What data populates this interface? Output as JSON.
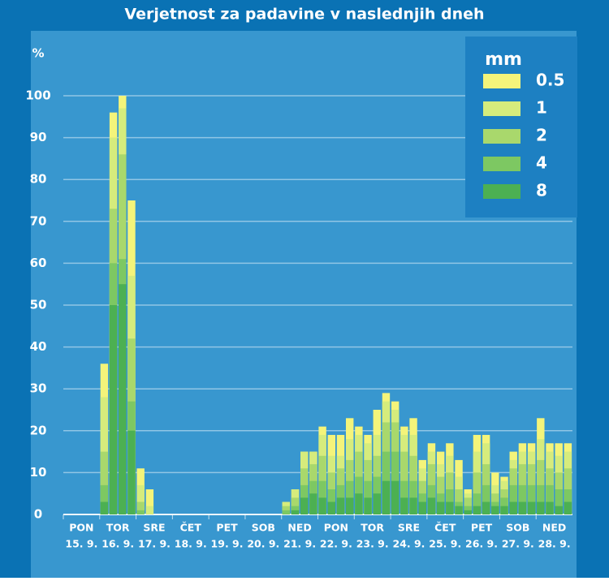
{
  "chart_data": {
    "type": "bar",
    "overlay": true,
    "title": "Verjetnost za padavine v naslednjih dneh",
    "y_unit": "%",
    "legend_title": "mm",
    "legend_position": "upper right",
    "grid": true,
    "ylim": [
      0,
      100
    ],
    "yticks": [
      0,
      10,
      20,
      30,
      40,
      50,
      60,
      70,
      80,
      90,
      100
    ],
    "days": [
      {
        "day": "PON",
        "date": "15. 9."
      },
      {
        "day": "TOR",
        "date": "16. 9."
      },
      {
        "day": "SRE",
        "date": "17. 9."
      },
      {
        "day": "ČET",
        "date": "18. 9."
      },
      {
        "day": "PET",
        "date": "19. 9."
      },
      {
        "day": "SOB",
        "date": "20. 9."
      },
      {
        "day": "NED",
        "date": "21. 9."
      },
      {
        "day": "PON",
        "date": "22. 9."
      },
      {
        "day": "TOR",
        "date": "23. 9."
      },
      {
        "day": "SRE",
        "date": "24. 9."
      },
      {
        "day": "ČET",
        "date": "25. 9."
      },
      {
        "day": "PET",
        "date": "26. 9."
      },
      {
        "day": "SOB",
        "date": "27. 9."
      },
      {
        "day": "NED",
        "date": "28. 9."
      }
    ],
    "bars_per_day": 4,
    "series": [
      {
        "name": "0.5",
        "color": "#f4f47a",
        "values": [
          0,
          0,
          0,
          0,
          36,
          96,
          100,
          75,
          11,
          6,
          0,
          0,
          0,
          0,
          0,
          0,
          0,
          0,
          0,
          0,
          0,
          0,
          0,
          0,
          3,
          6,
          15,
          15,
          21,
          19,
          19,
          23,
          21,
          19,
          25,
          29,
          27,
          21,
          23,
          13,
          17,
          15,
          17,
          13,
          6,
          19,
          19,
          10,
          9,
          15,
          17,
          17,
          23,
          17,
          17,
          17
        ]
      },
      {
        "name": "1",
        "color": "#d6ec7c",
        "values": [
          0,
          0,
          0,
          0,
          28,
          90,
          97,
          57,
          7,
          2,
          0,
          0,
          0,
          0,
          0,
          0,
          0,
          0,
          0,
          0,
          0,
          0,
          0,
          0,
          3,
          6,
          15,
          15,
          19,
          14,
          14,
          18,
          19,
          17,
          19,
          27,
          25,
          19,
          19,
          11,
          15,
          12,
          14,
          9,
          5,
          15,
          17,
          7,
          8,
          13,
          15,
          15,
          18,
          15,
          14,
          15
        ]
      },
      {
        "name": "2",
        "color": "#a9d86c",
        "values": [
          0,
          0,
          0,
          0,
          15,
          73,
          86,
          42,
          3,
          0,
          0,
          0,
          0,
          0,
          0,
          0,
          0,
          0,
          0,
          0,
          0,
          0,
          0,
          0,
          2,
          4,
          11,
          12,
          14,
          10,
          11,
          13,
          15,
          13,
          14,
          22,
          22,
          15,
          14,
          8,
          12,
          9,
          10,
          6,
          4,
          10,
          12,
          5,
          6,
          11,
          12,
          12,
          13,
          11,
          10,
          11
        ]
      },
      {
        "name": "4",
        "color": "#7dc862",
        "values": [
          0,
          0,
          0,
          0,
          7,
          60,
          61,
          27,
          1,
          0,
          0,
          0,
          0,
          0,
          0,
          0,
          0,
          0,
          0,
          0,
          0,
          0,
          0,
          0,
          1,
          2,
          7,
          8,
          8,
          6,
          7,
          8,
          9,
          8,
          9,
          15,
          15,
          8,
          8,
          5,
          7,
          5,
          6,
          3,
          2,
          5,
          7,
          3,
          4,
          7,
          7,
          7,
          7,
          7,
          6,
          6
        ]
      },
      {
        "name": "8",
        "color": "#4cb052",
        "values": [
          0,
          0,
          0,
          0,
          3,
          50,
          55,
          20,
          0,
          0,
          0,
          0,
          0,
          0,
          0,
          0,
          0,
          0,
          0,
          0,
          0,
          0,
          0,
          0,
          0,
          1,
          4,
          5,
          4,
          3,
          4,
          4,
          5,
          4,
          5,
          8,
          8,
          4,
          4,
          3,
          4,
          3,
          3,
          2,
          1,
          2,
          3,
          2,
          2,
          3,
          3,
          3,
          3,
          3,
          2,
          3
        ]
      }
    ]
  }
}
